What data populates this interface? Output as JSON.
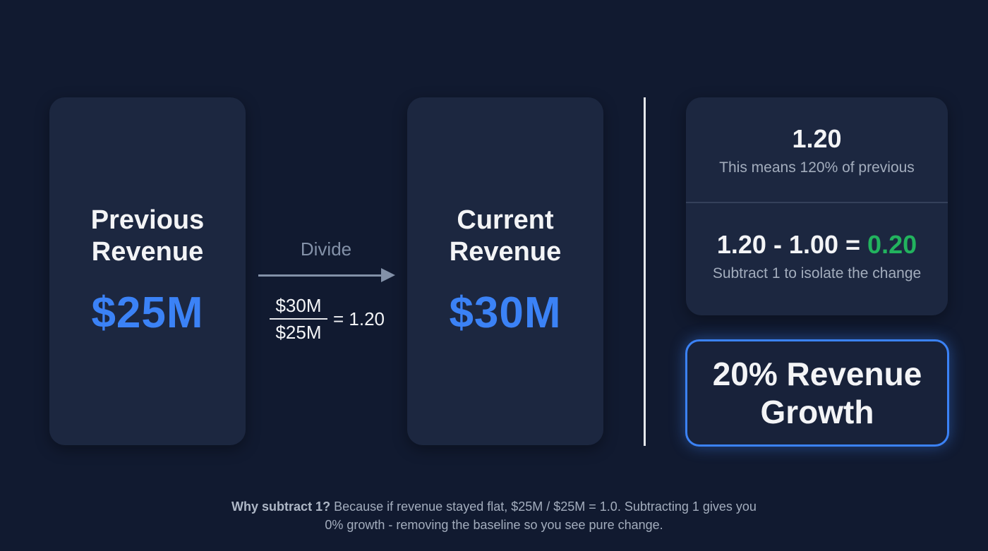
{
  "colors": {
    "background": "#111a30",
    "card": "#1c2740",
    "accent_blue": "#3b82f6",
    "accent_green": "#22b35e",
    "muted_text": "#a3adbd"
  },
  "previous": {
    "title_line1": "Previous",
    "title_line2": "Revenue",
    "value": "$25M"
  },
  "operation": {
    "label": "Divide",
    "numerator": "$30M",
    "denominator": "$25M",
    "result": "= 1.20"
  },
  "current": {
    "title_line1": "Current",
    "title_line2": "Revenue",
    "value": "$30M"
  },
  "calc": {
    "ratio": "1.20",
    "ratio_caption": "This means 120% of previous",
    "equation_left": "1.20 - 1.00 =",
    "equation_result": "0.20",
    "equation_caption": "Subtract 1 to isolate the change"
  },
  "result": {
    "line1": "20% Revenue",
    "line2": "Growth"
  },
  "footnote": {
    "bold": "Why subtract 1?",
    "line1_rest": " Because if revenue stayed flat, $25M / $25M = 1.0. Subtracting 1 gives you",
    "line2": "0% growth - removing the baseline so you see pure change."
  }
}
